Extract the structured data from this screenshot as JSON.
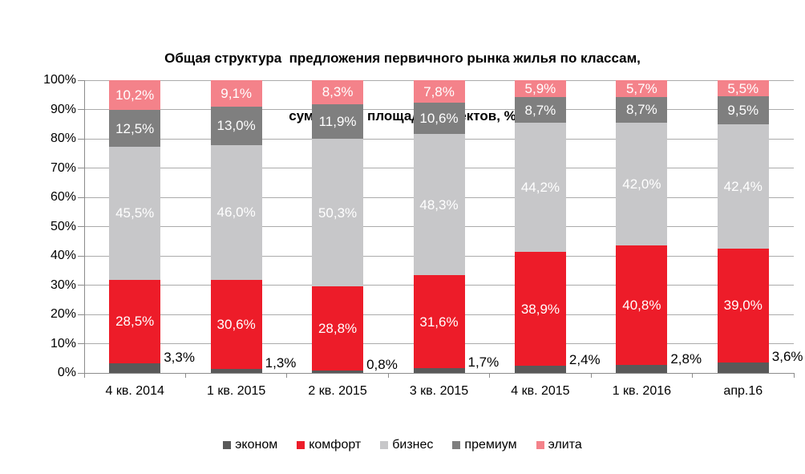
{
  "title": {
    "line1": "Общая структура  предложения первичного рынка жилья по классам,",
    "line2": "суммарная площадь объектов, %"
  },
  "chart_data": {
    "type": "bar",
    "stacked": true,
    "title": "Общая структура предложения первичного рынка жилья по классам, суммарная площадь объектов, %",
    "categories": [
      "4 кв. 2014",
      "1 кв. 2015",
      "2 кв. 2015",
      "3 кв. 2015",
      "4 кв. 2015",
      "1 кв. 2016",
      "апр.16"
    ],
    "series": [
      {
        "name": "эконом",
        "color": "#595959",
        "label_color": "#000000",
        "label_position": "outside-right",
        "values": [
          3.3,
          1.3,
          0.8,
          1.7,
          2.4,
          2.8,
          3.6
        ],
        "labels": [
          "3,3%",
          "1,3%",
          "0,8%",
          "1,7%",
          "2,4%",
          "2,8%",
          "3,6%"
        ]
      },
      {
        "name": "комфорт",
        "color": "#ed1c29",
        "label_color": "#ffffff",
        "label_position": "inside",
        "values": [
          28.5,
          30.6,
          28.8,
          31.6,
          38.9,
          40.8,
          39.0
        ],
        "labels": [
          "28,5%",
          "30,6%",
          "28,8%",
          "31,6%",
          "38,9%",
          "40,8%",
          "39,0%"
        ]
      },
      {
        "name": "бизнес",
        "color": "#c7c7c9",
        "label_color": "#ffffff",
        "label_position": "inside",
        "values": [
          45.5,
          46.0,
          50.3,
          48.3,
          44.2,
          42.0,
          42.4
        ],
        "labels": [
          "45,5%",
          "46,0%",
          "50,3%",
          "48,3%",
          "44,2%",
          "42,0%",
          "42,4%"
        ]
      },
      {
        "name": "премиум",
        "color": "#7f7f7f",
        "label_color": "#ffffff",
        "label_position": "inside",
        "values": [
          12.5,
          13.0,
          11.9,
          10.6,
          8.7,
          8.7,
          9.5
        ],
        "labels": [
          "12,5%",
          "13,0%",
          "11,9%",
          "10,6%",
          "8,7%",
          "8,7%",
          "9,5%"
        ]
      },
      {
        "name": "элита",
        "color": "#f4828a",
        "label_color": "#ffffff",
        "label_position": "inside",
        "values": [
          10.2,
          9.1,
          8.3,
          7.8,
          5.9,
          5.7,
          5.5
        ],
        "labels": [
          "10,2%",
          "9,1%",
          "8,3%",
          "7,8%",
          "5,9%",
          "5,7%",
          "5,5%"
        ]
      }
    ],
    "y_axis": {
      "min": 0,
      "max": 100,
      "tick_step": 10,
      "tick_labels": [
        "0%",
        "10%",
        "20%",
        "30%",
        "40%",
        "50%",
        "60%",
        "70%",
        "80%",
        "90%",
        "100%"
      ]
    },
    "grid": true,
    "legend_position": "bottom",
    "legend": [
      "эконом",
      "комфорт",
      "бизнес",
      "премиум",
      "элита"
    ]
  }
}
